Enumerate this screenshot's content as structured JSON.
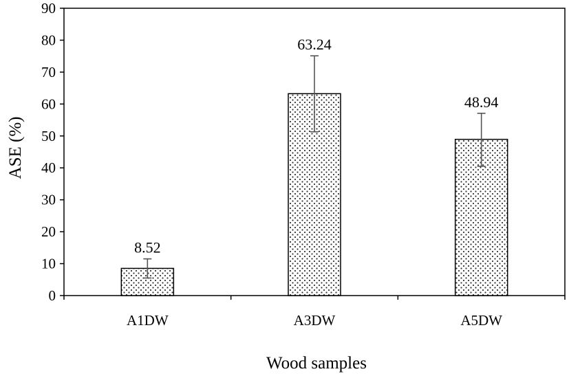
{
  "chart_data": {
    "type": "bar",
    "categories": [
      "A1DW",
      "A3DW",
      "A5DW"
    ],
    "values": [
      8.52,
      63.24,
      48.94
    ],
    "error_low": [
      5.5,
      51.3,
      40.5
    ],
    "error_high": [
      11.5,
      75.1,
      57.1
    ],
    "data_labels": [
      "8.52",
      "63.24",
      "48.94"
    ],
    "xlabel": "Wood samples",
    "ylabel": "ASE (%)",
    "ylim": [
      0,
      90
    ],
    "yticks": [
      "0",
      "10",
      "20",
      "30",
      "40",
      "50",
      "60",
      "70",
      "80",
      "90"
    ],
    "bar_fill": "dotted pattern (black dots on white)",
    "grid": false,
    "legend": "none"
  }
}
